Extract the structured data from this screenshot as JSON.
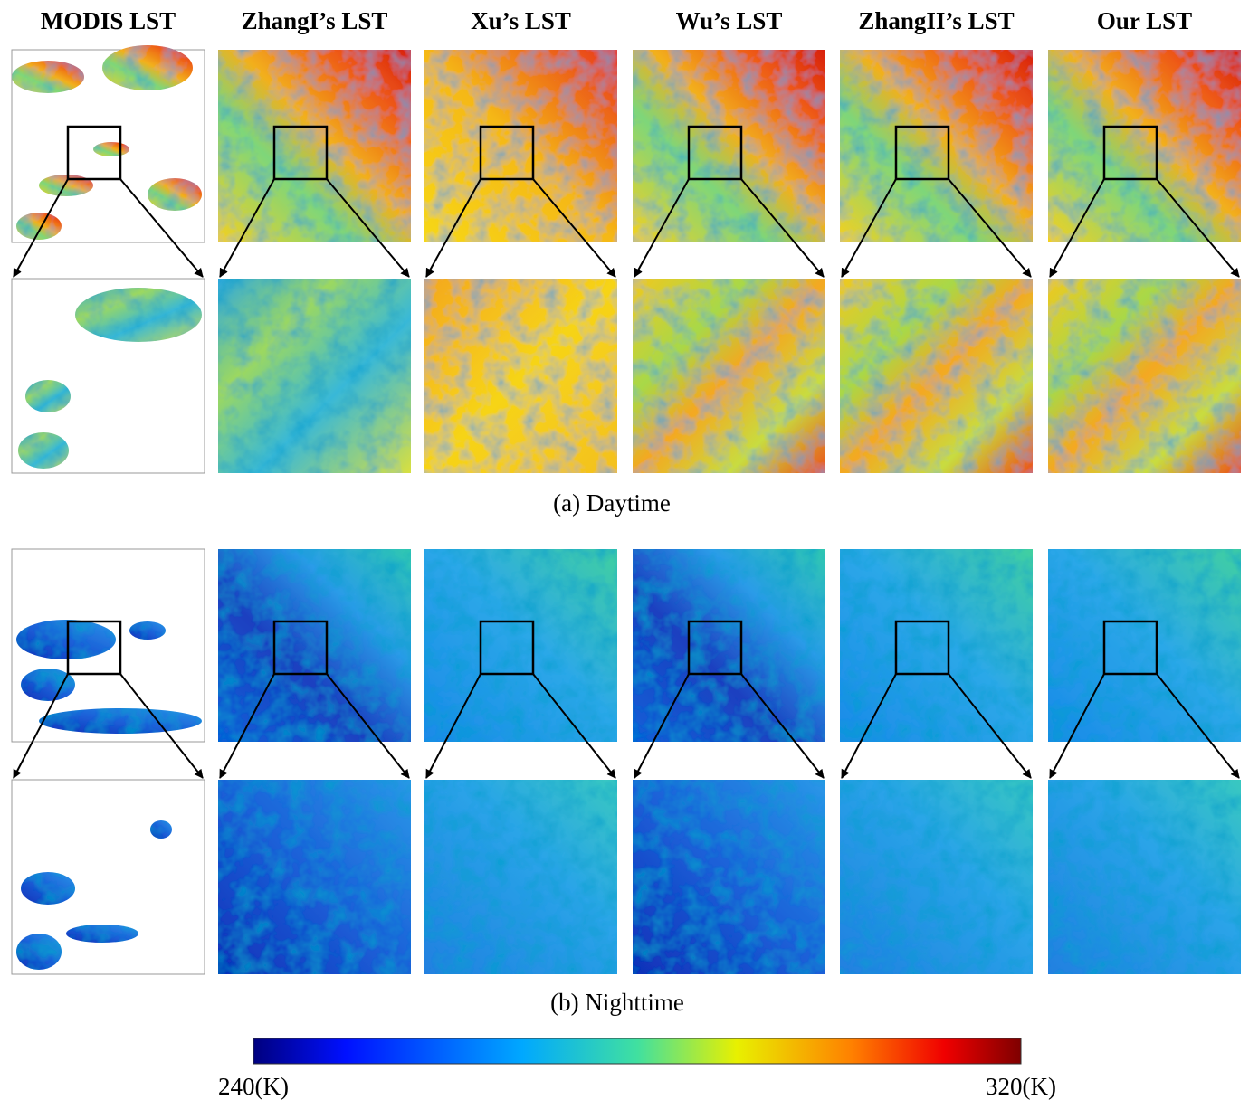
{
  "columns": [
    "MODIS LST",
    "ZhangI’s LST",
    "Xu’s LST",
    "Wu’s LST",
    "ZhangII’s LST",
    "Our LST"
  ],
  "captions": {
    "day": "(a) Daytime",
    "night": "(b) Nighttime"
  },
  "colorbar": {
    "min_label": "240(K)",
    "max_label": "320(K)"
  }
}
